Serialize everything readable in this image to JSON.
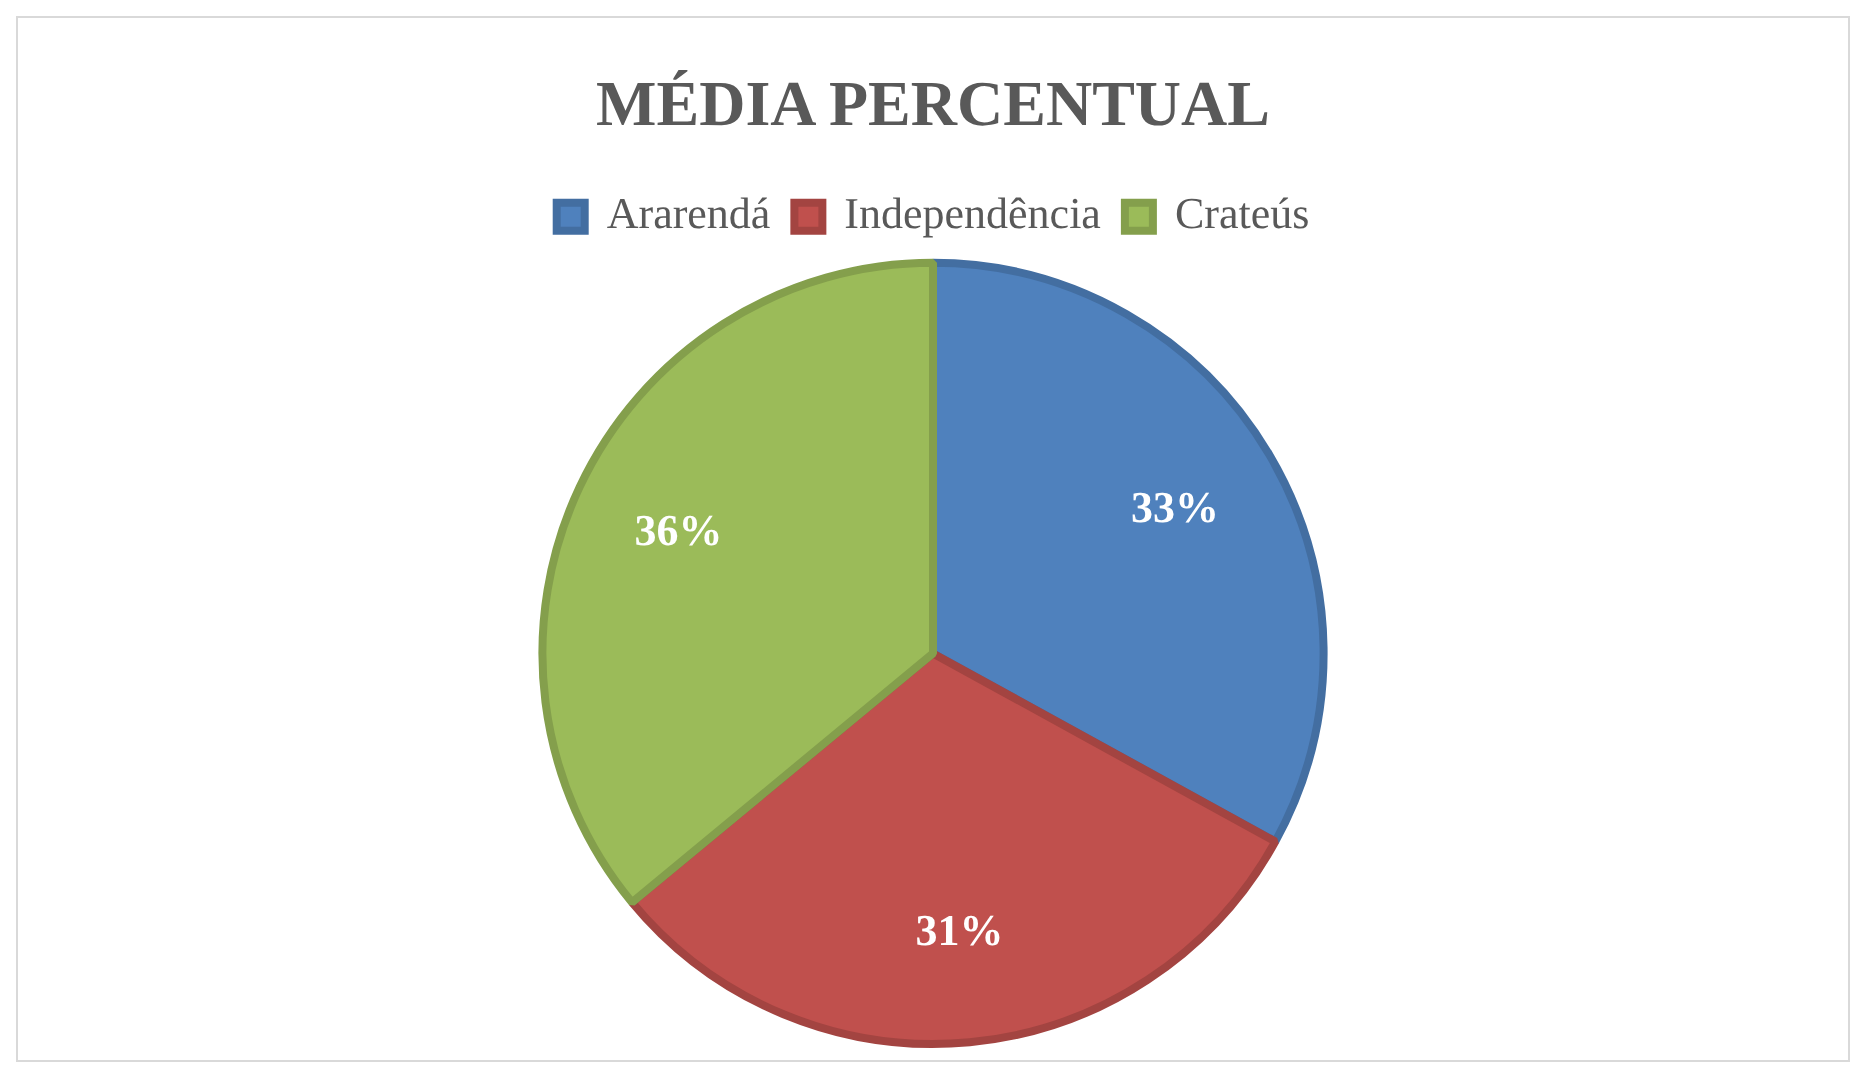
{
  "chart_data": {
    "type": "pie",
    "title": "MÉDIA PERCENTUAL",
    "categories": [
      "Ararendá",
      "Independência",
      "Crateús"
    ],
    "values": [
      33,
      31,
      36
    ],
    "value_labels": [
      "33%",
      "31%",
      "36%"
    ],
    "colors": [
      "#4f81bd",
      "#c0504d",
      "#9bbb59"
    ],
    "legend": "top"
  }
}
